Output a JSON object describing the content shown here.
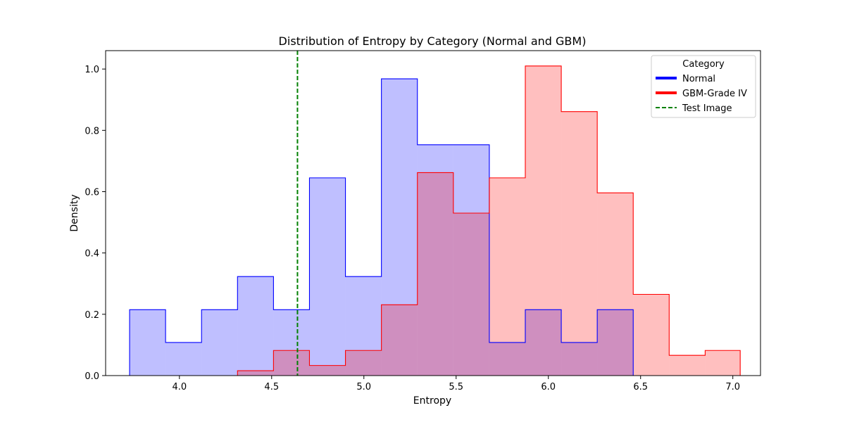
{
  "chart_data": {
    "type": "histogram",
    "title": "Distribution of Entropy by Category (Normal and GBM)",
    "xlabel": "Entropy",
    "ylabel": "Density",
    "xlim": [
      3.6,
      7.15
    ],
    "ylim": [
      0,
      1.06
    ],
    "xticks": [
      "4.0",
      "4.5",
      "5.0",
      "5.5",
      "6.0",
      "6.5",
      "7.0"
    ],
    "yticks": [
      "0.0",
      "0.2",
      "0.4",
      "0.6",
      "0.8",
      "1.0"
    ],
    "legend": {
      "title": "Category",
      "placement": "top-right",
      "entries": [
        {
          "label": "Normal",
          "color": "#0000ff",
          "style": "solid"
        },
        {
          "label": "GBM-Grade IV",
          "color": "#ff0000",
          "style": "solid"
        },
        {
          "label": "Test Image",
          "color": "#008000",
          "style": "dashed"
        }
      ]
    },
    "series": [
      {
        "name": "Normal",
        "edge_color": "#0000ff",
        "fill_color": "#0000ff",
        "fill_alpha": 0.25,
        "bin_edges": [
          3.73,
          3.925,
          4.12,
          4.315,
          4.51,
          4.705,
          4.9,
          5.095,
          5.29,
          5.485,
          5.68,
          5.875,
          6.07,
          6.265,
          6.46
        ],
        "values": [
          0.215,
          0.108,
          0.215,
          0.323,
          0.215,
          0.645,
          0.323,
          0.968,
          0.753,
          0.753,
          0.108,
          0.215,
          0.108,
          0.215
        ]
      },
      {
        "name": "GBM-Grade IV",
        "edge_color": "#ff0000",
        "fill_color": "#ff0000",
        "fill_alpha": 0.25,
        "bin_edges": [
          3.73,
          3.925,
          4.12,
          4.315,
          4.51,
          4.705,
          4.9,
          5.095,
          5.29,
          5.485,
          5.68,
          5.875,
          6.07,
          6.265,
          6.46,
          6.655,
          6.85,
          7.04
        ],
        "values": [
          0.0,
          0.0,
          0.0,
          0.016,
          0.082,
          0.033,
          0.082,
          0.231,
          0.662,
          0.53,
          0.645,
          1.01,
          0.861,
          0.596,
          0.265,
          0.066,
          0.082
        ]
      }
    ],
    "vline": {
      "name": "Test Image",
      "x": 4.64,
      "color": "#008000",
      "style": "dashed"
    }
  }
}
